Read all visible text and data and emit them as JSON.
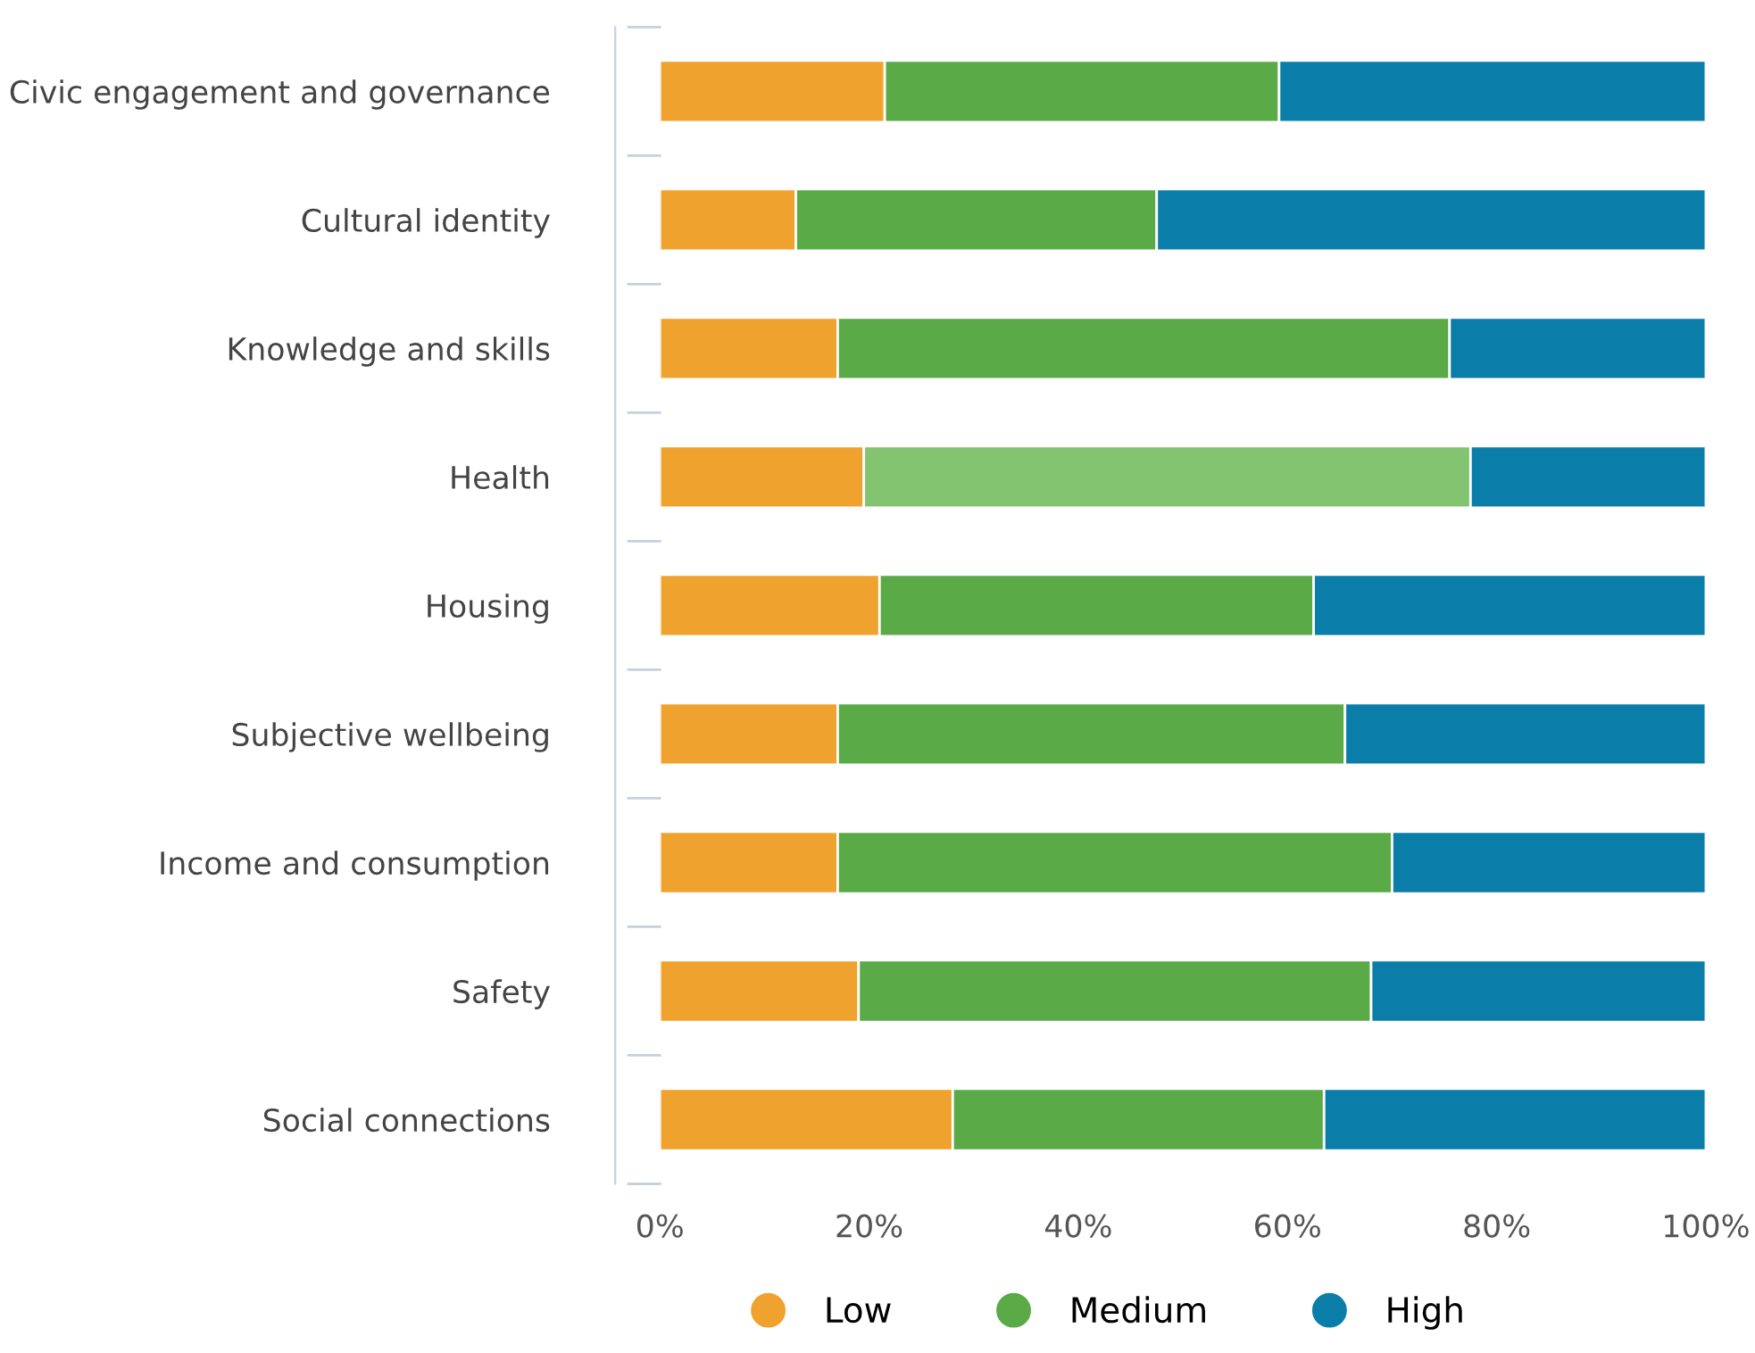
{
  "chart_data": {
    "type": "bar",
    "orientation": "horizontal",
    "stacked": true,
    "categories": [
      "Civic engagement and governance",
      "Cultural identity",
      "Knowledge and skills",
      "Health",
      "Housing",
      "Subjective wellbeing",
      "Income and consumption",
      "Safety",
      "Social connections"
    ],
    "series": [
      {
        "name": "Low",
        "color": "#f0a22e",
        "values": [
          21.5,
          13,
          17,
          19.5,
          21,
          17,
          17,
          19,
          28
        ]
      },
      {
        "name": "Medium",
        "color": "#5aaa48",
        "colors": [
          "#5aaa48",
          "#5aaa48",
          "#5aaa48",
          "#82c46f",
          "#5aaa48",
          "#5aaa48",
          "#5aaa48",
          "#5aaa48",
          "#5aaa48"
        ],
        "values": [
          37.7,
          34.5,
          58.5,
          58,
          41.5,
          48.5,
          53,
          49,
          35.5
        ]
      },
      {
        "name": "High",
        "color": "#0a7ea8",
        "values": [
          40.8,
          52.5,
          24.5,
          22.5,
          37.5,
          34.5,
          30,
          32,
          36.5
        ]
      }
    ],
    "xlim": [
      0,
      100
    ],
    "xticks": [
      {
        "value": 0,
        "label": "0%"
      },
      {
        "value": 20,
        "label": "20%"
      },
      {
        "value": 40,
        "label": "40%"
      },
      {
        "value": 60,
        "label": "60%"
      },
      {
        "value": 80,
        "label": "80%"
      },
      {
        "value": 100,
        "label": "100%"
      }
    ],
    "grid": false,
    "legend": "bottom"
  }
}
